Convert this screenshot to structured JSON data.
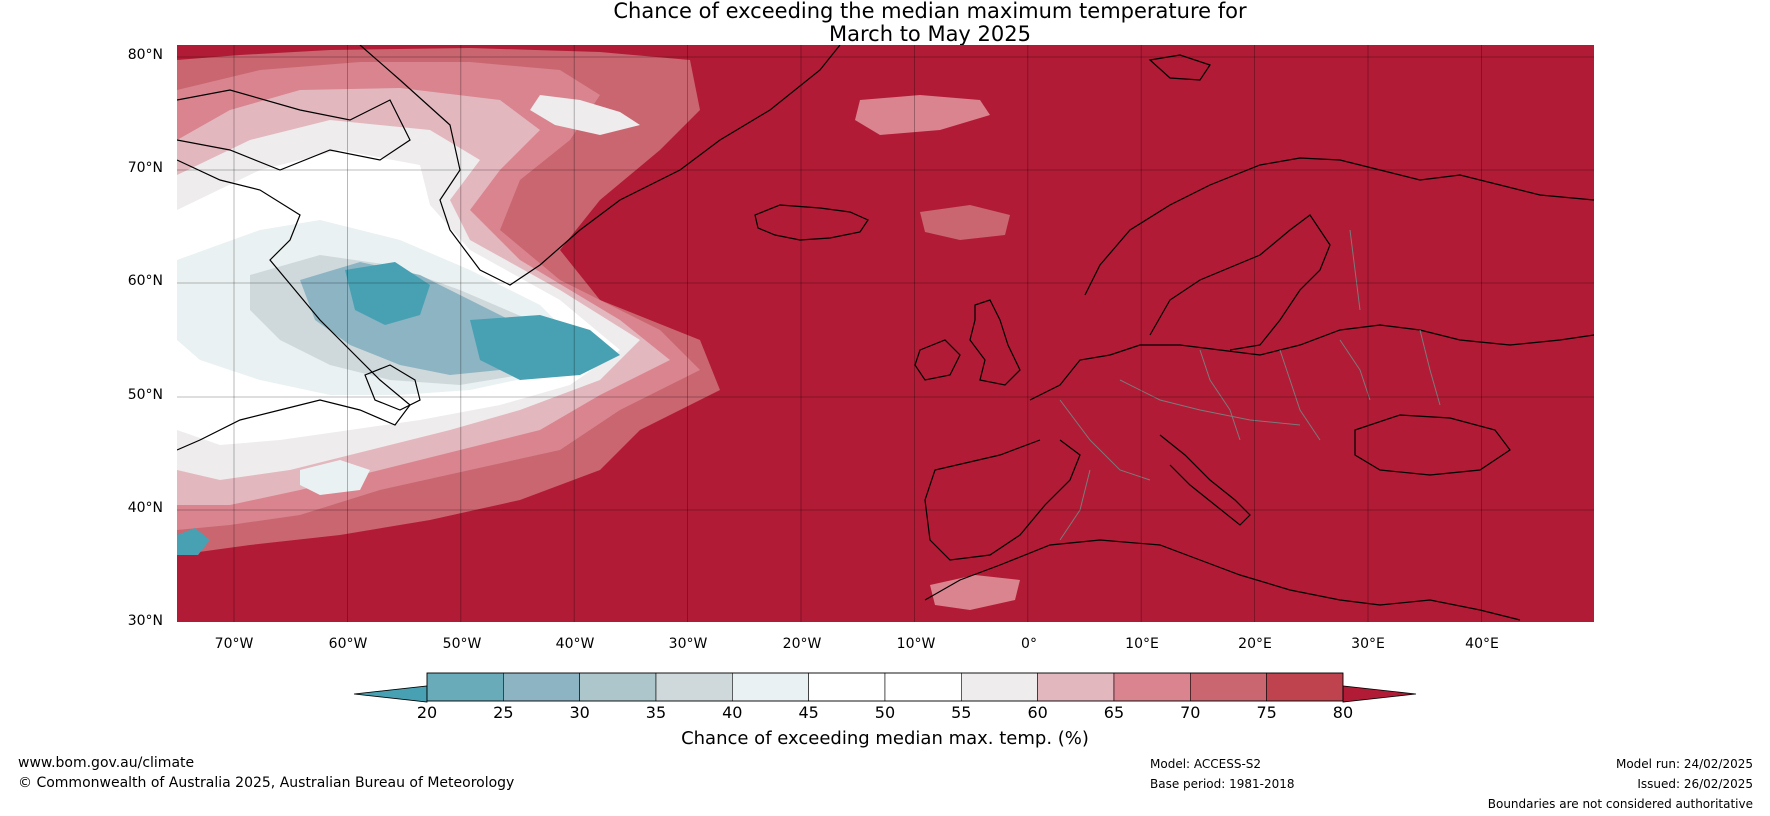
{
  "title": {
    "line1": "Chance of exceeding the median maximum temperature for",
    "line2": "March to May 2025"
  },
  "map": {
    "lat_labels": [
      "80°N",
      "70°N",
      "60°N",
      "50°N",
      "40°N",
      "30°N"
    ],
    "lon_labels": [
      "70°W",
      "60°W",
      "50°W",
      "40°W",
      "30°W",
      "20°W",
      "10°W",
      "0°",
      "10°E",
      "20°E",
      "30°E",
      "40°E"
    ],
    "background_color": "#b11b35"
  },
  "colorbar": {
    "label": "Chance of exceeding median max. temp. (%)",
    "ticks": [
      "20",
      "25",
      "30",
      "35",
      "40",
      "45",
      "50",
      "55",
      "60",
      "65",
      "70",
      "75",
      "80"
    ],
    "under_color": "#47a1b3",
    "over_color": "#b11b35",
    "colors": [
      "#6aabba",
      "#8db4c3",
      "#adc6cb",
      "#cfd9dc",
      "#eaf1f2",
      "#ffffff",
      "#ffffff",
      "#eeeced",
      "#e3b7be",
      "#d9848f",
      "#c96670",
      "#bf424f"
    ]
  },
  "footer": {
    "website": "www.bom.gov.au/climate",
    "copyright": "© Commonwealth of Australia 2025, Australian Bureau of Meteorology",
    "model": "Model: ACCESS-S2",
    "base_period": "Base period: 1981-2018",
    "model_run": "Model run: 24/02/2025",
    "issued": "Issued: 26/02/2025",
    "disclaimer": "Boundaries are not considered authoritative"
  }
}
